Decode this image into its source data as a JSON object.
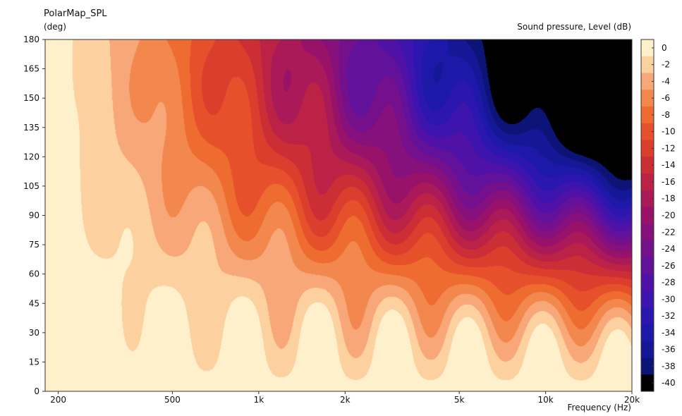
{
  "chart_data": {
    "type": "heatmap",
    "title": "PolarMap_SPL",
    "ylabel": "(deg)",
    "xlabel": "Frequency  (Hz)",
    "zlabel": "Sound pressure, Level  (dB)",
    "xscale": "log",
    "xlim": [
      180,
      20000
    ],
    "ylim": [
      0,
      180
    ],
    "zlim": [
      -41,
      1
    ],
    "x_ticks": [
      {
        "v": 200,
        "label": "200"
      },
      {
        "v": 500,
        "label": "500"
      },
      {
        "v": 1000,
        "label": "1k"
      },
      {
        "v": 2000,
        "label": "2k"
      },
      {
        "v": 5000,
        "label": "5k"
      },
      {
        "v": 10000,
        "label": "10k"
      },
      {
        "v": 20000,
        "label": "20k"
      }
    ],
    "y_ticks": [
      "0",
      "15",
      "30",
      "45",
      "60",
      "75",
      "90",
      "105",
      "120",
      "135",
      "150",
      "165",
      "180"
    ],
    "colorbar": {
      "labels": [
        "0",
        "-2",
        "-4",
        "-6",
        "-8",
        "-10",
        "-12",
        "-14",
        "-16",
        "-18",
        "-20",
        "-22",
        "-24",
        "-26",
        "-28",
        "-30",
        "-32",
        "-34",
        "-36",
        "-38",
        "-40"
      ],
      "colors": [
        "#fff0cc",
        "#fdd0a0",
        "#f8a878",
        "#f3884e",
        "#ee6c30",
        "#e6502a",
        "#dc3e2e",
        "#cc2e36",
        "#bc2246",
        "#aa1a58",
        "#98126a",
        "#86107c",
        "#74108c",
        "#62129a",
        "#5012a6",
        "#3e14ae",
        "#2c16b0",
        "#1e18a8",
        "#141896",
        "#0c1478",
        "#000000"
      ]
    },
    "grid": false,
    "legend": "colorbar right"
  }
}
